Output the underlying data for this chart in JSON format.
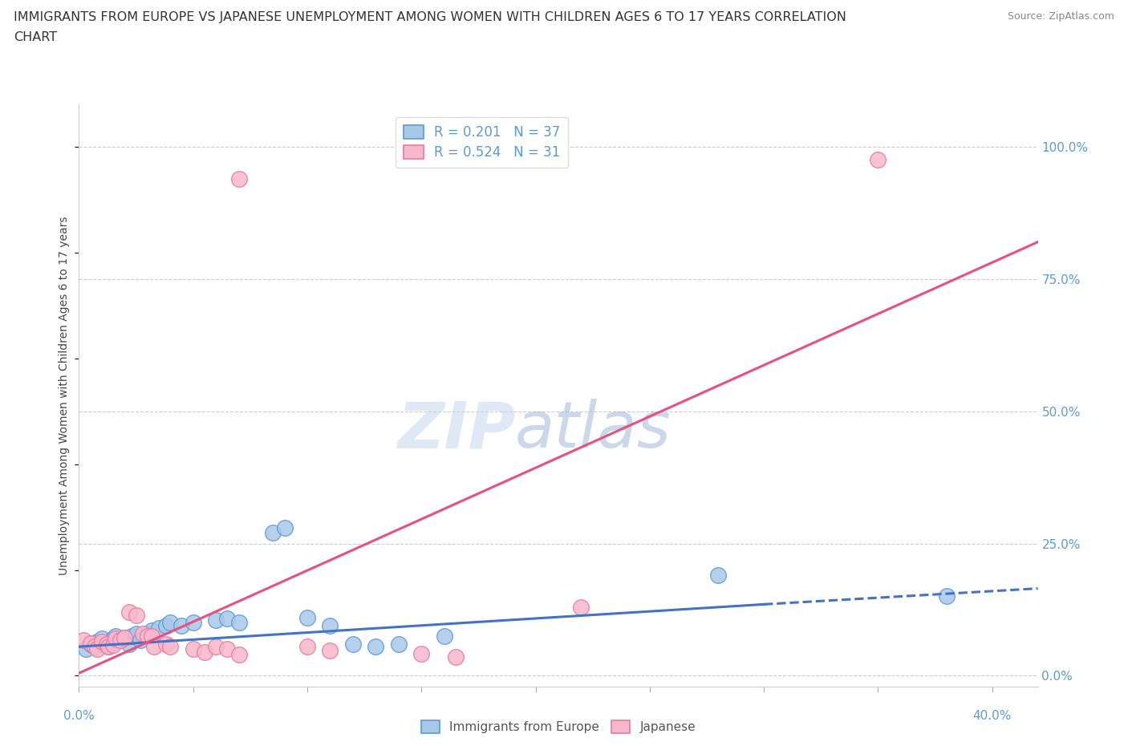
{
  "title_line1": "IMMIGRANTS FROM EUROPE VS JAPANESE UNEMPLOYMENT AMONG WOMEN WITH CHILDREN AGES 6 TO 17 YEARS CORRELATION",
  "title_line2": "CHART",
  "source": "Source: ZipAtlas.com",
  "ylabel": "Unemployment Among Women with Children Ages 6 to 17 years",
  "ytick_labels": [
    "0.0%",
    "25.0%",
    "50.0%",
    "75.0%",
    "100.0%"
  ],
  "ytick_values": [
    0.0,
    0.25,
    0.5,
    0.75,
    1.0
  ],
  "legend_entries": [
    {
      "label": "R = 0.201   N = 37",
      "color": "#a8c4e0"
    },
    {
      "label": "R = 0.524   N = 31",
      "color": "#f4a7b9"
    }
  ],
  "legend_bottom": [
    "Immigrants from Europe",
    "Japanese"
  ],
  "watermark_zip": "ZIP",
  "watermark_atlas": "atlas",
  "background_color": "#ffffff",
  "grid_color": "#cccccc",
  "blue_fill": "#a8c8e8",
  "pink_fill": "#f8b8cc",
  "blue_edge": "#5b9bd5",
  "pink_edge": "#e87aa0",
  "blue_line": "#4472c4",
  "pink_line": "#e85080",
  "blue_scatter": [
    [
      0.003,
      0.05
    ],
    [
      0.005,
      0.06
    ],
    [
      0.007,
      0.055
    ],
    [
      0.008,
      0.065
    ],
    [
      0.01,
      0.06
    ],
    [
      0.01,
      0.07
    ],
    [
      0.012,
      0.06
    ],
    [
      0.013,
      0.055
    ],
    [
      0.015,
      0.065
    ],
    [
      0.015,
      0.07
    ],
    [
      0.016,
      0.075
    ],
    [
      0.018,
      0.068
    ],
    [
      0.02,
      0.072
    ],
    [
      0.022,
      0.06
    ],
    [
      0.023,
      0.075
    ],
    [
      0.025,
      0.08
    ],
    [
      0.027,
      0.068
    ],
    [
      0.03,
      0.08
    ],
    [
      0.032,
      0.085
    ],
    [
      0.035,
      0.09
    ],
    [
      0.038,
      0.095
    ],
    [
      0.04,
      0.1
    ],
    [
      0.045,
      0.095
    ],
    [
      0.05,
      0.1
    ],
    [
      0.06,
      0.105
    ],
    [
      0.065,
      0.108
    ],
    [
      0.07,
      0.1
    ],
    [
      0.085,
      0.27
    ],
    [
      0.09,
      0.28
    ],
    [
      0.1,
      0.11
    ],
    [
      0.11,
      0.095
    ],
    [
      0.12,
      0.06
    ],
    [
      0.13,
      0.055
    ],
    [
      0.14,
      0.06
    ],
    [
      0.16,
      0.075
    ],
    [
      0.28,
      0.19
    ],
    [
      0.38,
      0.15
    ]
  ],
  "pink_scatter": [
    [
      0.002,
      0.068
    ],
    [
      0.005,
      0.062
    ],
    [
      0.007,
      0.055
    ],
    [
      0.008,
      0.05
    ],
    [
      0.01,
      0.065
    ],
    [
      0.012,
      0.06
    ],
    [
      0.013,
      0.055
    ],
    [
      0.015,
      0.058
    ],
    [
      0.016,
      0.07
    ],
    [
      0.018,
      0.068
    ],
    [
      0.02,
      0.072
    ],
    [
      0.022,
      0.12
    ],
    [
      0.025,
      0.115
    ],
    [
      0.028,
      0.08
    ],
    [
      0.03,
      0.075
    ],
    [
      0.032,
      0.075
    ],
    [
      0.033,
      0.055
    ],
    [
      0.038,
      0.06
    ],
    [
      0.04,
      0.055
    ],
    [
      0.05,
      0.05
    ],
    [
      0.055,
      0.045
    ],
    [
      0.06,
      0.055
    ],
    [
      0.065,
      0.05
    ],
    [
      0.07,
      0.94
    ],
    [
      0.07,
      0.04
    ],
    [
      0.1,
      0.055
    ],
    [
      0.11,
      0.048
    ],
    [
      0.15,
      0.042
    ],
    [
      0.165,
      0.035
    ],
    [
      0.22,
      0.13
    ],
    [
      0.35,
      0.975
    ]
  ],
  "xlim": [
    0.0,
    0.42
  ],
  "ylim": [
    -0.02,
    1.08
  ],
  "blue_trend_solid": [
    0.0,
    0.055,
    0.3,
    0.135
  ],
  "blue_trend_dashed": [
    0.3,
    0.135,
    0.42,
    0.165
  ],
  "pink_trend": [
    0.0,
    0.005,
    0.42,
    0.82
  ],
  "xtick_positions": [
    0.0,
    0.05,
    0.1,
    0.15,
    0.2,
    0.25,
    0.3,
    0.35,
    0.4
  ]
}
